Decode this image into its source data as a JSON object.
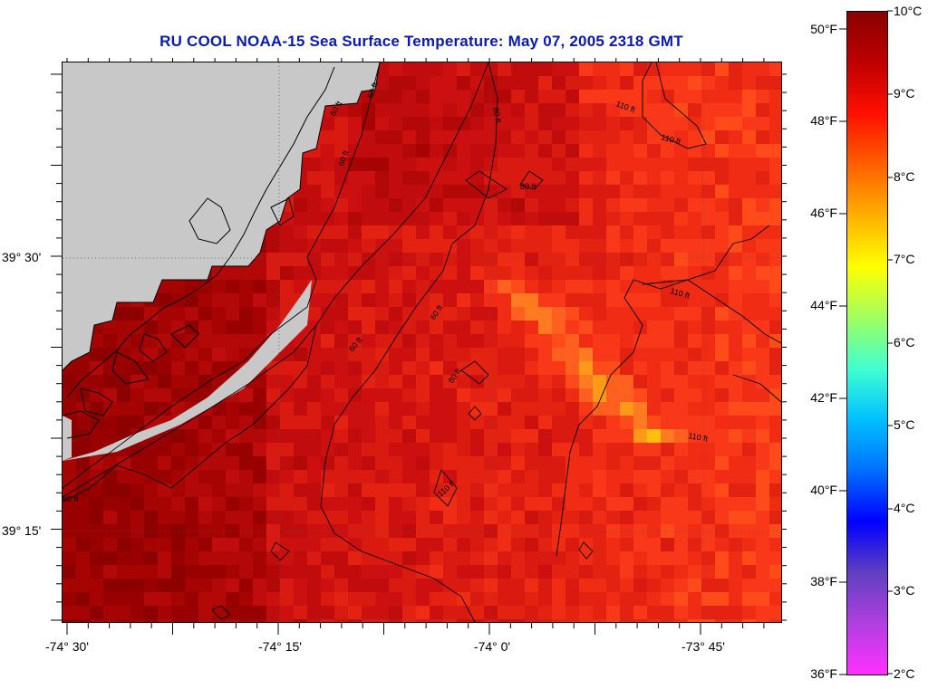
{
  "title": "RU COOL  NOAA-15  Sea Surface Temperature:  May 07, 2005 2318 GMT",
  "latitude_labels": [
    "39° 30'",
    "39° 15'"
  ],
  "longitude_labels": [
    "-74° 30'",
    "-74° 15'",
    "-74° 0'",
    "-73° 45'"
  ],
  "colorbar": {
    "fahrenheit_labels": [
      "50°F",
      "48°F",
      "46°F",
      "44°F",
      "42°F",
      "40°F",
      "38°F",
      "36°F"
    ],
    "celsius_labels": [
      "10°C",
      "9°C",
      "8°C",
      "7°C",
      "6°C",
      "5°C",
      "4°C",
      "3°C",
      "2°C"
    ],
    "range_celsius": [
      2,
      10
    ],
    "colors": [
      "#ff30ff",
      "#b040e0",
      "#6040c0",
      "#0000ff",
      "#0070ff",
      "#00c0ff",
      "#40ffd0",
      "#a0ff60",
      "#ffff00",
      "#ffb000",
      "#ff6000",
      "#ff1000",
      "#c00000",
      "#8a0000"
    ]
  },
  "land_color": "#c8c8c8",
  "contour_labels": [
    "50 ft",
    "60 ft",
    "60 ft",
    "60 ft",
    "60 ft",
    "80 ft",
    "80 ft",
    "80 ft",
    "110 ft",
    "110 ft",
    "110 ft",
    "110 ft",
    "110 ft",
    "60 ft"
  ]
}
